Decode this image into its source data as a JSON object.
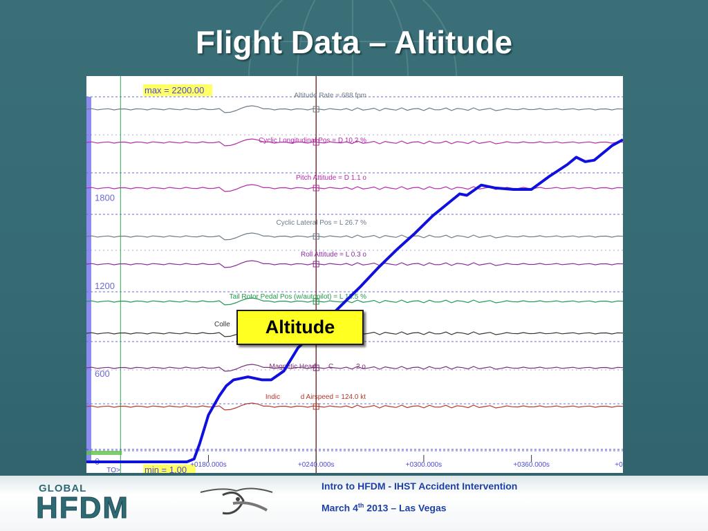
{
  "slide": {
    "title": "Flight Data – Altitude"
  },
  "footer": {
    "logo_global": "GLOBAL",
    "logo_hfdm": "HFDM",
    "line1": "Intro to HFDM  - IHST Accident Intervention",
    "line2_pre": "March 4",
    "line2_sup": "th",
    "line2_post": " 2013   –  Las Vegas"
  },
  "callout": {
    "label": "Altitude"
  },
  "colors": {
    "background": "#356a73",
    "altitude_line": "#1010dd",
    "callout_fill": "#ffff22",
    "footer_text": "#1d3fa8"
  },
  "chart_data": {
    "type": "line",
    "max_label": "max = 2200.00",
    "min_label": "min = 1.00",
    "ylim": [
      0,
      2200
    ],
    "y_ticks": [
      {
        "value": 1800,
        "label": "1800"
      },
      {
        "value": 1200,
        "label": "1200"
      },
      {
        "value": 600,
        "label": "600"
      },
      {
        "value": 0,
        "label": "0"
      }
    ],
    "xlim": [
      112,
      411
    ],
    "x_ticks": [
      {
        "value": 180,
        "label": "+0180.000s"
      },
      {
        "value": 240,
        "label": "+0240.000s"
      },
      {
        "value": 300,
        "label": "+0300.000s"
      },
      {
        "value": 360,
        "label": "+0360.000s"
      },
      {
        "value": 420,
        "label": "+0"
      }
    ],
    "to_marker": {
      "value": 131,
      "label": "TO>"
    },
    "cursor_time": 240,
    "series": [
      {
        "name": "Altitude",
        "x": [
          112,
          130,
          150,
          168,
          172,
          175,
          178,
          180,
          186,
          190,
          194,
          198,
          202,
          210,
          215,
          222,
          230,
          238,
          245,
          255,
          265,
          275,
          285,
          295,
          305,
          315,
          320,
          324,
          332,
          340,
          350,
          360,
          370,
          375,
          380,
          385,
          390,
          395,
          400,
          405,
          411
        ],
        "y": [
          0,
          0,
          0,
          0,
          20,
          120,
          240,
          320,
          450,
          520,
          560,
          570,
          580,
          560,
          560,
          620,
          780,
          870,
          960,
          1080,
          1200,
          1330,
          1450,
          1560,
          1680,
          1780,
          1830,
          1820,
          1890,
          1870,
          1860,
          1860,
          1950,
          1990,
          2030,
          2080,
          2050,
          2060,
          2110,
          2160,
          2200
        ]
      }
    ],
    "parameter_traces": [
      {
        "label": "Altitude Rate = 688 fpm",
        "color": "#6d7b86"
      },
      {
        "label": "Cyclic Longitudinal Pos = D 10.2 %",
        "color": "#b52aa8"
      },
      {
        "label": "Pitch Attitude = D 1.1 o",
        "color": "#b52aa8"
      },
      {
        "label": "Cyclic Lateral Pos = L 26.7 %",
        "color": "#6d7b86"
      },
      {
        "label": "Roll Attitude = L 0.3 o",
        "color": "#8a2aa0"
      },
      {
        "label": "Tail Rotor Pedal Pos (w/autopilot) = L 13.5 %",
        "color": "#1f9a4a"
      },
      {
        "label": "Colle",
        "color": "#333333"
      },
      {
        "label": "Magnetic Headi",
        "color": "#7a2f7a"
      },
      {
        "label": "C",
        "color": "#7a2f7a"
      },
      {
        "label": "2 o",
        "color": "#7a2f7a"
      },
      {
        "label": "Indic",
        "color": "#b3382c"
      },
      {
        "label": "d Airspeed = 124.0 kt",
        "color": "#b3382c"
      }
    ]
  }
}
